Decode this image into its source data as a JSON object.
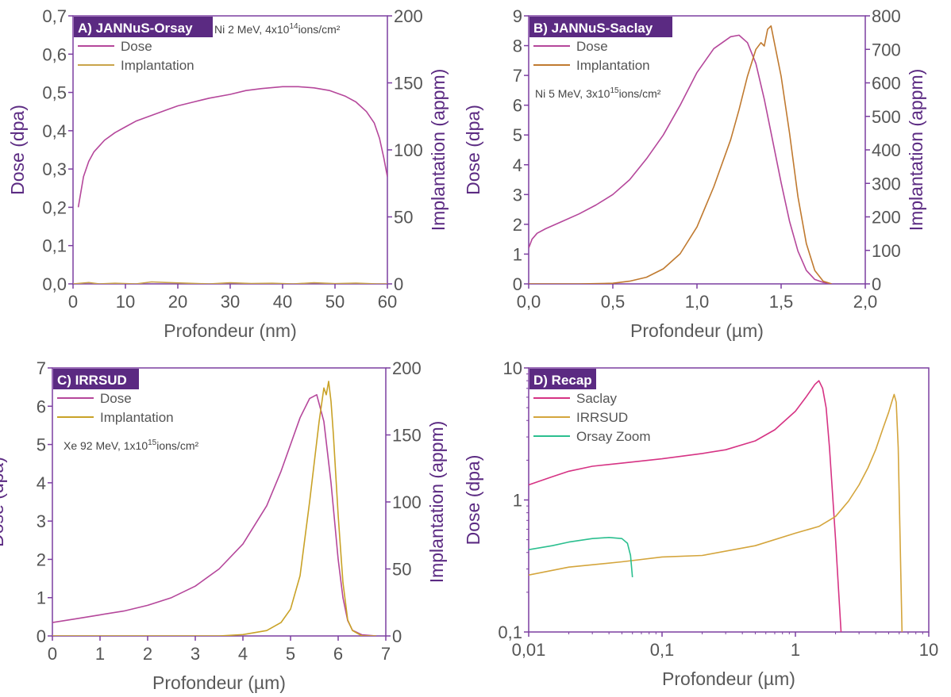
{
  "colors": {
    "frame": "#7b3fa0",
    "tag_bg": "#5b2a82",
    "dose": "#b5479b",
    "implant_a": "#c9a44a",
    "implant_b": "#c07a30",
    "implant_c": "#c9a227",
    "saclay": "#d63384",
    "irrsud": "#d4a53c",
    "orsay_zoom": "#2bbf8f"
  },
  "chart_data": [
    {
      "id": "A",
      "type": "line",
      "tag": "A) JANNuS-Orsay",
      "note": {
        "base": "Ni 2 MeV, 4x10",
        "sup": "14",
        "unit": "ions/cm²"
      },
      "xlabel": "Profondeur (nm)",
      "ylabel": "Dose (dpa)",
      "y2label": "Implantation (appm)",
      "xlim": [
        0,
        60
      ],
      "ylim": [
        0,
        0.7
      ],
      "y2lim": [
        0,
        200
      ],
      "xticks": [
        "0",
        "10",
        "20",
        "30",
        "40",
        "50",
        "60"
      ],
      "yticks": [
        "0,0",
        "0,1",
        "0,2",
        "0,3",
        "0,4",
        "0,5",
        "0,6",
        "0,7"
      ],
      "y2ticks": [
        "0",
        "50",
        "100",
        "150",
        "200"
      ],
      "legend": [
        "Dose",
        "Implantation"
      ],
      "series": [
        {
          "name": "Dose",
          "axis": "left",
          "color": "dose",
          "x": [
            1,
            2,
            3,
            4,
            5,
            6,
            8,
            10,
            12,
            15,
            18,
            20,
            23,
            26,
            30,
            33,
            36,
            40,
            43,
            46,
            49,
            52,
            54,
            56,
            57.5,
            58.5,
            59.3,
            60
          ],
          "y": [
            0.2,
            0.28,
            0.32,
            0.345,
            0.36,
            0.375,
            0.395,
            0.41,
            0.425,
            0.44,
            0.455,
            0.465,
            0.475,
            0.485,
            0.495,
            0.505,
            0.51,
            0.515,
            0.515,
            0.512,
            0.505,
            0.49,
            0.475,
            0.45,
            0.42,
            0.38,
            0.33,
            0.28
          ]
        },
        {
          "name": "Implantation",
          "axis": "right",
          "color": "implant_a",
          "x": [
            0,
            3,
            5,
            8,
            12,
            15,
            18,
            22,
            26,
            30,
            34,
            38,
            42,
            46,
            50,
            54,
            58,
            60
          ],
          "y": [
            0,
            1,
            0,
            0.5,
            0,
            1.5,
            1,
            0.5,
            0,
            0.8,
            0.3,
            0.5,
            0,
            0.8,
            0.2,
            0.6,
            0,
            0
          ]
        }
      ]
    },
    {
      "id": "B",
      "type": "line",
      "tag": "B) JANNuS-Saclay",
      "note": {
        "base": "Ni 5 MeV, 3x10",
        "sup": "15",
        "unit": "ions/cm²"
      },
      "xlabel": "Profondeur (µm)",
      "ylabel": "Dose (dpa)",
      "y2label": "Implantation (appm)",
      "xlim": [
        0,
        2
      ],
      "ylim": [
        0,
        9
      ],
      "y2lim": [
        0,
        800
      ],
      "xticks": [
        "0,0",
        "0,5",
        "1,0",
        "1,5",
        "2,0"
      ],
      "yticks": [
        "0",
        "1",
        "2",
        "3",
        "4",
        "5",
        "6",
        "7",
        "8",
        "9"
      ],
      "y2ticks": [
        "0",
        "100",
        "200",
        "300",
        "400",
        "500",
        "600",
        "700",
        "800"
      ],
      "legend": [
        "Dose",
        "Implantation"
      ],
      "series": [
        {
          "name": "Dose",
          "axis": "left",
          "color": "dose",
          "x": [
            0,
            0.02,
            0.05,
            0.1,
            0.2,
            0.3,
            0.4,
            0.5,
            0.6,
            0.7,
            0.8,
            0.9,
            1.0,
            1.1,
            1.2,
            1.25,
            1.3,
            1.35,
            1.4,
            1.45,
            1.5,
            1.55,
            1.6,
            1.65,
            1.7,
            1.75,
            1.8
          ],
          "y": [
            1.2,
            1.5,
            1.7,
            1.85,
            2.1,
            2.35,
            2.65,
            3.0,
            3.5,
            4.2,
            5.0,
            6.0,
            7.1,
            7.9,
            8.3,
            8.35,
            8.1,
            7.4,
            6.2,
            4.8,
            3.4,
            2.1,
            1.1,
            0.45,
            0.15,
            0.05,
            0.0
          ]
        },
        {
          "name": "Implantation",
          "axis": "right",
          "color": "implant_b",
          "x": [
            0,
            0.3,
            0.5,
            0.6,
            0.7,
            0.8,
            0.9,
            1.0,
            1.1,
            1.2,
            1.25,
            1.3,
            1.35,
            1.38,
            1.4,
            1.42,
            1.44,
            1.46,
            1.5,
            1.55,
            1.6,
            1.65,
            1.7,
            1.75,
            1.8
          ],
          "y": [
            0,
            0,
            2,
            8,
            20,
            45,
            90,
            170,
            290,
            430,
            520,
            620,
            700,
            720,
            710,
            760,
            770,
            720,
            620,
            450,
            260,
            120,
            40,
            8,
            0
          ]
        }
      ]
    },
    {
      "id": "C",
      "type": "line",
      "tag": "C) IRRSUD",
      "note": {
        "base": "Xe 92 MeV, 1x10",
        "sup": "15",
        "unit": "ions/cm²"
      },
      "xlabel": "Profondeur (µm)",
      "ylabel": "Dose (dpa)",
      "y2label": "Implantation (appm)",
      "xlim": [
        0,
        7
      ],
      "ylim": [
        0,
        7
      ],
      "y2lim": [
        0,
        200
      ],
      "xticks": [
        "0",
        "1",
        "2",
        "3",
        "4",
        "5",
        "6",
        "7"
      ],
      "yticks": [
        "0",
        "1",
        "2",
        "3",
        "4",
        "5",
        "6",
        "7"
      ],
      "y2ticks": [
        "0",
        "50",
        "100",
        "150",
        "200"
      ],
      "legend": [
        "Dose",
        "Implantation"
      ],
      "series": [
        {
          "name": "Dose",
          "axis": "left",
          "color": "dose",
          "x": [
            0,
            0.5,
            1,
            1.5,
            2,
            2.5,
            3,
            3.5,
            4,
            4.5,
            4.8,
            5.0,
            5.2,
            5.4,
            5.55,
            5.7,
            5.85,
            6.0,
            6.1,
            6.2,
            6.3,
            6.5,
            6.8
          ],
          "y": [
            0.35,
            0.45,
            0.55,
            0.65,
            0.8,
            1.0,
            1.3,
            1.75,
            2.4,
            3.4,
            4.3,
            5.0,
            5.7,
            6.2,
            6.3,
            5.6,
            4.0,
            2.0,
            1.0,
            0.4,
            0.15,
            0.03,
            0.0
          ]
        },
        {
          "name": "Implantation",
          "axis": "right",
          "color": "implant_c",
          "x": [
            0,
            3.5,
            4.0,
            4.5,
            4.8,
            5.0,
            5.2,
            5.4,
            5.5,
            5.6,
            5.7,
            5.75,
            5.8,
            5.85,
            5.9,
            6.0,
            6.1,
            6.2,
            6.3,
            6.5,
            6.8
          ],
          "y": [
            0,
            0,
            1,
            4,
            10,
            20,
            45,
            100,
            130,
            160,
            185,
            180,
            190,
            175,
            150,
            90,
            40,
            12,
            4,
            0,
            0
          ]
        }
      ]
    },
    {
      "id": "D",
      "type": "line",
      "tag": "D) Recap",
      "xlabel": "Profondeur (µm)",
      "ylabel": "Dose (dpa)",
      "xscale": "log",
      "yscale": "log",
      "xlim": [
        0.01,
        10
      ],
      "ylim": [
        0.1,
        10
      ],
      "xticks": [
        "0,01",
        "0,1",
        "1",
        "10"
      ],
      "yticks": [
        "0,1",
        "1",
        "10"
      ],
      "legend": [
        "Saclay",
        "IRRSUD",
        "Orsay Zoom"
      ],
      "series": [
        {
          "name": "Saclay",
          "color": "saclay",
          "x": [
            0.01,
            0.015,
            0.02,
            0.03,
            0.05,
            0.1,
            0.2,
            0.3,
            0.5,
            0.7,
            1.0,
            1.2,
            1.4,
            1.5,
            1.6,
            1.7,
            1.8,
            2.0,
            2.2
          ],
          "y": [
            1.3,
            1.5,
            1.65,
            1.8,
            1.9,
            2.05,
            2.25,
            2.4,
            2.8,
            3.4,
            4.7,
            6.0,
            7.5,
            8.0,
            7.0,
            5.0,
            2.5,
            0.5,
            0.1
          ]
        },
        {
          "name": "IRRSUD",
          "color": "irrsud",
          "x": [
            0.01,
            0.02,
            0.05,
            0.1,
            0.2,
            0.5,
            1.0,
            1.5,
            2.0,
            2.5,
            3.0,
            3.5,
            4.0,
            4.5,
            5.0,
            5.3,
            5.5,
            5.7,
            5.9,
            6.1,
            6.3
          ],
          "y": [
            0.27,
            0.31,
            0.34,
            0.37,
            0.38,
            0.45,
            0.56,
            0.63,
            0.75,
            0.98,
            1.3,
            1.75,
            2.4,
            3.4,
            4.6,
            5.6,
            6.3,
            5.5,
            2.5,
            0.5,
            0.1
          ]
        },
        {
          "name": "Orsay Zoom",
          "color": "orsay_zoom",
          "x": [
            0.01,
            0.015,
            0.02,
            0.03,
            0.04,
            0.05,
            0.055,
            0.058,
            0.06
          ],
          "y": [
            0.42,
            0.45,
            0.48,
            0.51,
            0.52,
            0.51,
            0.47,
            0.38,
            0.26
          ]
        }
      ]
    }
  ]
}
